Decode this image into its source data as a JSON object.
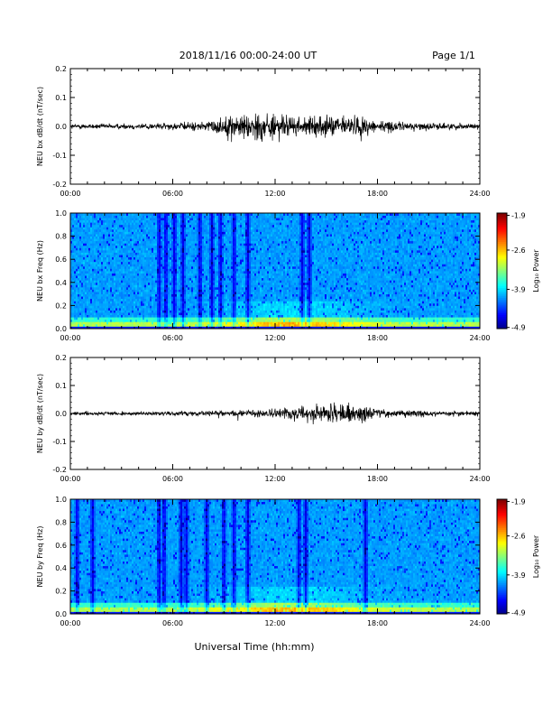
{
  "header": {
    "title": "2018/11/16  00:00-24:00 UT",
    "page": "Page 1/1"
  },
  "x_axis_label": "Universal Time (hh:mm)",
  "x_tick_labels": [
    "00:00",
    "06:00",
    "12:00",
    "18:00",
    "24:00"
  ],
  "chart_data": [
    {
      "type": "line",
      "ylabel": "NEU bx dB/dt (nT/sec)",
      "xlim": [
        0,
        24
      ],
      "ylim": [
        -0.2,
        0.2
      ],
      "y_ticks": [
        "-0.2",
        "-0.1",
        "0.0",
        "0.1",
        "0.2"
      ],
      "x_ticks": [
        "00:00",
        "06:00",
        "12:00",
        "18:00",
        "24:00"
      ],
      "envelope": {
        "hours": [
          0,
          2,
          4,
          6,
          8,
          9,
          10,
          11,
          12,
          13,
          14,
          15,
          16,
          17,
          18,
          20,
          22,
          24
        ],
        "amplitude": [
          0.012,
          0.012,
          0.014,
          0.016,
          0.024,
          0.045,
          0.06,
          0.07,
          0.06,
          0.045,
          0.04,
          0.05,
          0.05,
          0.05,
          0.03,
          0.018,
          0.015,
          0.014
        ],
        "peak_max": 0.09,
        "peak_min": -0.11
      }
    },
    {
      "type": "heatmap",
      "ylabel": "NEU bx Freq (Hz)",
      "xlim": [
        0,
        24
      ],
      "ylim": [
        0.0,
        1.0
      ],
      "y_ticks": [
        "0.0",
        "0.2",
        "0.4",
        "0.6",
        "0.8",
        "1.0"
      ],
      "x_ticks": [
        "00:00",
        "06:00",
        "12:00",
        "18:00",
        "24:00"
      ],
      "colorbar": {
        "label": "Log₁₀ Power",
        "range": [
          -4.9,
          -1.9
        ],
        "ticks": [
          "-1.9",
          "-2.6",
          "-3.9",
          "-4.9"
        ]
      },
      "dark_stripe_hours": [
        5.2,
        5.6,
        6.1,
        6.6,
        7.6,
        8.3,
        8.8,
        9.6,
        10.4,
        13.6,
        14.0
      ]
    },
    {
      "type": "line",
      "ylabel": "NEU by dB/dt (nT/sec)",
      "xlim": [
        0,
        24
      ],
      "ylim": [
        -0.2,
        0.2
      ],
      "y_ticks": [
        "-0.2",
        "-0.1",
        "0.0",
        "0.1",
        "0.2"
      ],
      "x_ticks": [
        "00:00",
        "06:00",
        "12:00",
        "18:00",
        "24:00"
      ],
      "envelope": {
        "hours": [
          0,
          2,
          4,
          6,
          8,
          10,
          11,
          12,
          13,
          14,
          15,
          16,
          17,
          18,
          20,
          22,
          24
        ],
        "amplitude": [
          0.01,
          0.008,
          0.008,
          0.01,
          0.012,
          0.015,
          0.02,
          0.025,
          0.03,
          0.04,
          0.045,
          0.05,
          0.04,
          0.02,
          0.015,
          0.013,
          0.012
        ],
        "peak_max": 0.07,
        "peak_min": -0.08
      }
    },
    {
      "type": "heatmap",
      "ylabel": "NEU by Freq (Hz)",
      "xlim": [
        0,
        24
      ],
      "ylim": [
        0.0,
        1.0
      ],
      "y_ticks": [
        "0.0",
        "0.2",
        "0.4",
        "0.6",
        "0.8",
        "1.0"
      ],
      "x_ticks": [
        "00:00",
        "06:00",
        "12:00",
        "18:00",
        "24:00"
      ],
      "colorbar": {
        "label": "Log₁₀ Power",
        "range": [
          -4.9,
          -1.9
        ],
        "ticks": [
          "-1.9",
          "-2.6",
          "-3.9",
          "-4.9"
        ]
      },
      "dark_stripe_hours": [
        0.4,
        1.3,
        5.2,
        5.5,
        6.5,
        6.8,
        8.0,
        9.0,
        9.6,
        10.4,
        13.4,
        13.8,
        17.3
      ]
    }
  ]
}
